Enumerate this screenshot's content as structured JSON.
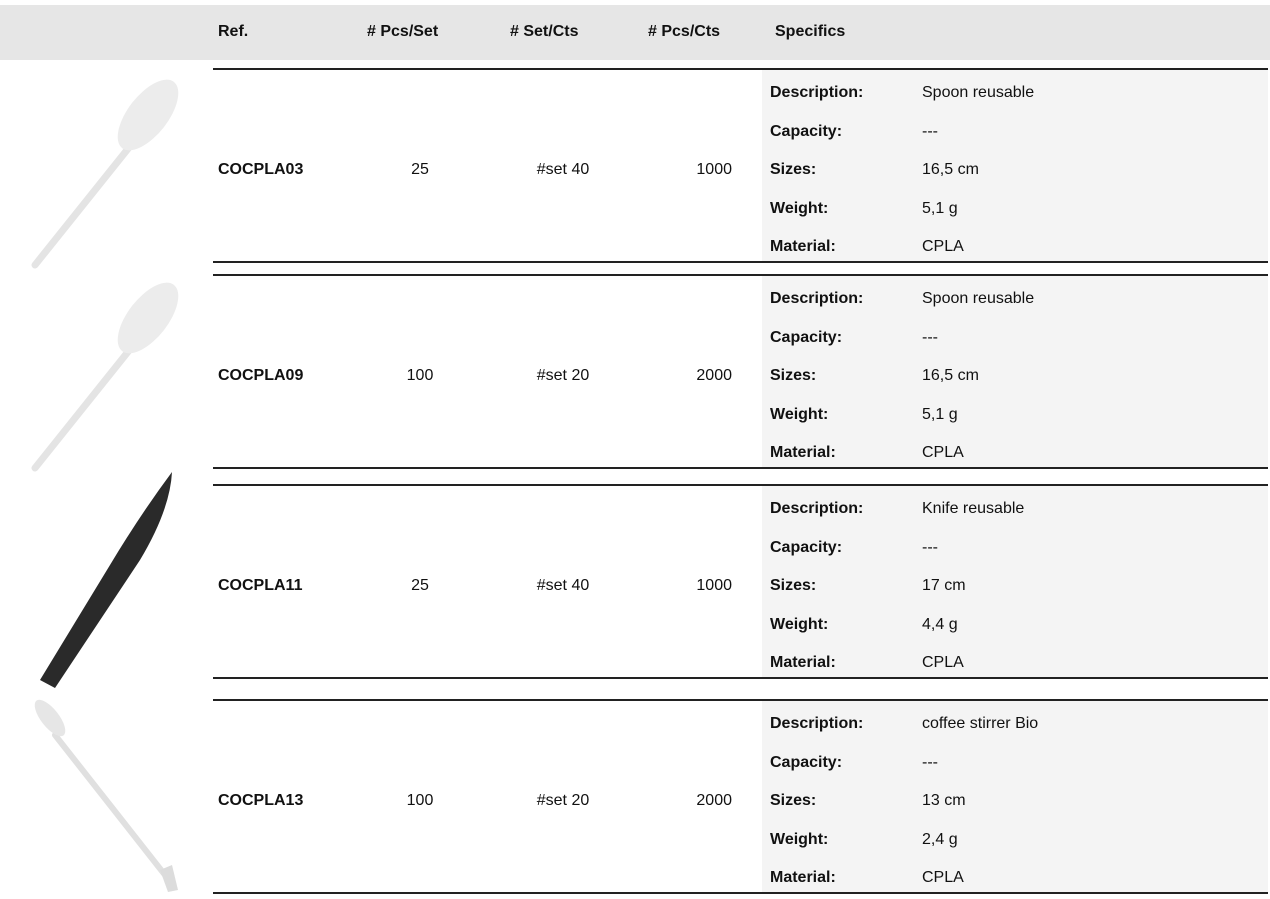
{
  "header": {
    "columns": [
      "Ref.",
      "# Pcs/Set",
      "# Set/Cts",
      "# Pcs/Cts",
      "Specifics"
    ]
  },
  "rows": [
    {
      "ref": "COCPLA03",
      "pcs_set": 25,
      "set_cts": "#set 40",
      "pcs_cts": 1000,
      "specifics": [
        {
          "label": "Description:",
          "value": "Spoon reusable"
        },
        {
          "label": "Capacity:",
          "value": "---"
        },
        {
          "label": "Sizes:",
          "value": "16,5 cm"
        },
        {
          "label": "Weight:",
          "value": "5,1 g"
        },
        {
          "label": "Material:",
          "value": "CPLA"
        }
      ]
    },
    {
      "ref": "COCPLA09",
      "pcs_set": 100,
      "set_cts": "#set 20",
      "pcs_cts": 2000,
      "specifics": [
        {
          "label": "Description:",
          "value": "Spoon reusable"
        },
        {
          "label": "Capacity:",
          "value": "---"
        },
        {
          "label": "Sizes:",
          "value": "16,5 cm"
        },
        {
          "label": "Weight:",
          "value": "5,1 g"
        },
        {
          "label": "Material:",
          "value": "CPLA"
        }
      ]
    },
    {
      "ref": "COCPLA11",
      "pcs_set": 25,
      "set_cts": "#set 40",
      "pcs_cts": 1000,
      "specifics": [
        {
          "label": "Description:",
          "value": "Knife reusable"
        },
        {
          "label": "Capacity:",
          "value": "---"
        },
        {
          "label": "Sizes:",
          "value": "17 cm"
        },
        {
          "label": "Weight:",
          "value": "4,4 g"
        },
        {
          "label": "Material:",
          "value": "CPLA"
        }
      ]
    },
    {
      "ref": "COCPLA13",
      "pcs_set": 100,
      "set_cts": "#set 20",
      "pcs_cts": 2000,
      "specifics": [
        {
          "label": "Description:",
          "value": "coffee stirrer Bio"
        },
        {
          "label": "Capacity:",
          "value": "---"
        },
        {
          "label": "Sizes:",
          "value": "13 cm"
        },
        {
          "label": "Weight:",
          "value": "2,4 g"
        },
        {
          "label": "Material:",
          "value": "CPLA"
        }
      ]
    }
  ]
}
